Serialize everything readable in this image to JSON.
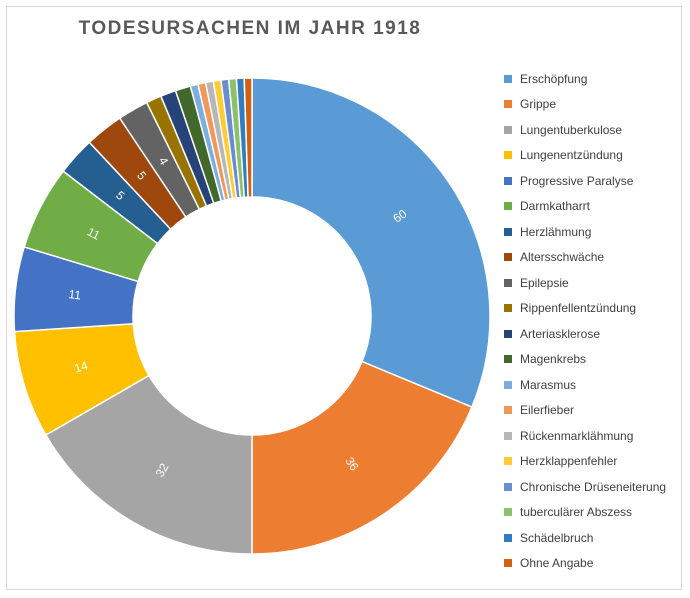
{
  "chart_data": {
    "type": "pie",
    "variant": "doughnut",
    "title": "TODESURSACHEN IM JAHR 1918",
    "legend_position": "right",
    "slices": [
      {
        "label": "Erschöpfung",
        "value": 60,
        "color": "#5b9bd5",
        "show_label": true
      },
      {
        "label": "Grippe",
        "value": 36,
        "color": "#ed7d31",
        "show_label": true
      },
      {
        "label": "Lungentuberkulose",
        "value": 32,
        "color": "#a5a5a5",
        "show_label": true
      },
      {
        "label": "Lungenentzündung",
        "value": 14,
        "color": "#ffc000",
        "show_label": true
      },
      {
        "label": "Progressive Paralyse",
        "value": 11,
        "color": "#4472c4",
        "show_label": true
      },
      {
        "label": "Darmkatharrt",
        "value": 11,
        "color": "#70ad47",
        "show_label": true
      },
      {
        "label": "Herzlähmung",
        "value": 5,
        "color": "#255e91",
        "show_label": true
      },
      {
        "label": "Altersschwäche",
        "value": 5,
        "color": "#9e480e",
        "show_label": true
      },
      {
        "label": "Epilepsie",
        "value": 4,
        "color": "#636363",
        "show_label": true
      },
      {
        "label": "Rippenfellentzündung",
        "value": 2,
        "color": "#997300",
        "show_label": false
      },
      {
        "label": "Arteriasklerose",
        "value": 2,
        "color": "#264478",
        "show_label": false
      },
      {
        "label": "Magenkrebs",
        "value": 2,
        "color": "#43682b",
        "show_label": false
      },
      {
        "label": "Marasmus",
        "value": 1,
        "color": "#7cafdd",
        "show_label": false
      },
      {
        "label": "Eilerfieber",
        "value": 1,
        "color": "#f1975a",
        "show_label": false
      },
      {
        "label": "Rückenmarklähmung",
        "value": 1,
        "color": "#b7b7b7",
        "show_label": false
      },
      {
        "label": "Herzklappenfehler",
        "value": 1,
        "color": "#ffcd33",
        "show_label": false
      },
      {
        "label": "Chronische Drüseneiterung",
        "value": 1,
        "color": "#698ed0",
        "show_label": false
      },
      {
        "label": "tuberculärer Abszess",
        "value": 1,
        "color": "#8cc168",
        "show_label": false
      },
      {
        "label": "Schädelbruch",
        "value": 1,
        "color": "#327dc2",
        "show_label": false
      },
      {
        "label": "Ohne Angabe",
        "value": 1,
        "color": "#d26012",
        "show_label": false
      }
    ]
  }
}
